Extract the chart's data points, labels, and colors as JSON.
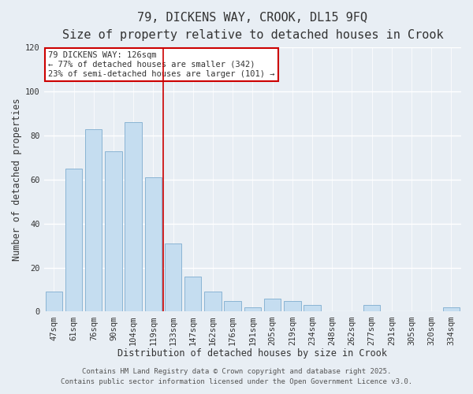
{
  "title": "79, DICKENS WAY, CROOK, DL15 9FQ",
  "subtitle": "Size of property relative to detached houses in Crook",
  "xlabel": "Distribution of detached houses by size in Crook",
  "ylabel": "Number of detached properties",
  "bar_labels": [
    "47sqm",
    "61sqm",
    "76sqm",
    "90sqm",
    "104sqm",
    "119sqm",
    "133sqm",
    "147sqm",
    "162sqm",
    "176sqm",
    "191sqm",
    "205sqm",
    "219sqm",
    "234sqm",
    "248sqm",
    "262sqm",
    "277sqm",
    "291sqm",
    "305sqm",
    "320sqm",
    "334sqm"
  ],
  "bar_values": [
    9,
    65,
    83,
    73,
    86,
    61,
    31,
    16,
    9,
    5,
    2,
    6,
    5,
    3,
    0,
    0,
    3,
    0,
    0,
    0,
    2
  ],
  "bar_color": "#c5ddf0",
  "bar_edge_color": "#8ab4d4",
  "vline_x": 5.5,
  "vline_color": "#cc0000",
  "ylim": [
    0,
    120
  ],
  "annotation_title": "79 DICKENS WAY: 126sqm",
  "annotation_line1": "← 77% of detached houses are smaller (342)",
  "annotation_line2": "23% of semi-detached houses are larger (101) →",
  "annotation_box_color": "#ffffff",
  "annotation_border_color": "#cc0000",
  "footer1": "Contains HM Land Registry data © Crown copyright and database right 2025.",
  "footer2": "Contains public sector information licensed under the Open Government Licence v3.0.",
  "bg_color": "#e8eef4",
  "grid_color": "#ffffff",
  "title_fontsize": 11,
  "subtitle_fontsize": 9.5,
  "axis_label_fontsize": 8.5,
  "tick_fontsize": 7.5,
  "annotation_fontsize": 7.5,
  "footer_fontsize": 6.5
}
